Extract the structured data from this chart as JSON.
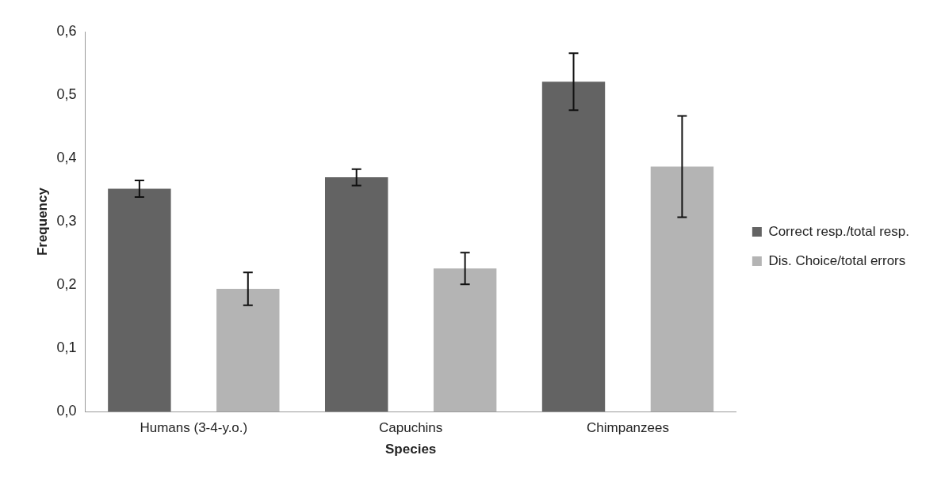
{
  "chart_data": {
    "type": "bar",
    "xlabel": "Species",
    "ylabel": "Frequency",
    "categories": [
      "Humans (3-4-y.o.)",
      "Capuchins",
      "Chimpanzees"
    ],
    "series": [
      {
        "name": "Correct resp./total resp.",
        "color": "#636363",
        "values": [
          0.352,
          0.37,
          0.521
        ],
        "errors": [
          0.013,
          0.013,
          0.045
        ]
      },
      {
        "name": "Dis. Choice/total errors",
        "color": "#b4b4b4",
        "values": [
          0.194,
          0.226,
          0.387
        ],
        "errors": [
          0.026,
          0.025,
          0.08
        ]
      }
    ],
    "ylim": [
      0,
      0.6
    ],
    "yticks": [
      {
        "value": 0,
        "label": "0,0"
      },
      {
        "value": 0.1,
        "label": "0,1"
      },
      {
        "value": 0.2,
        "label": "0,2"
      },
      {
        "value": 0.3,
        "label": "0,3"
      },
      {
        "value": 0.4,
        "label": "0,4"
      },
      {
        "value": 0.5,
        "label": "0,5"
      },
      {
        "value": 0.6,
        "label": "0,6"
      }
    ],
    "grid": false,
    "legend": "right"
  }
}
